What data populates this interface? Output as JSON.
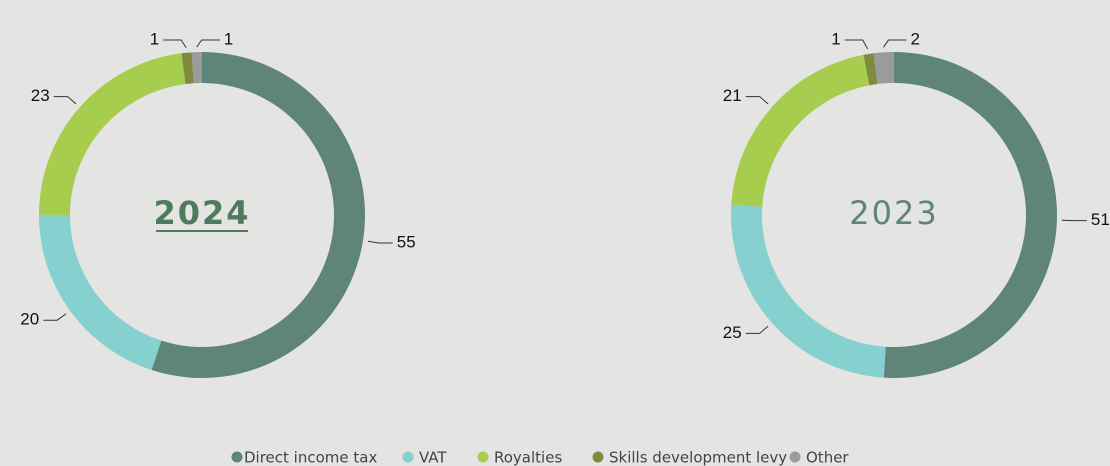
{
  "chart_data": [
    {
      "type": "pie",
      "title": "2024",
      "categories": [
        "Direct income tax",
        "VAT",
        "Royalties",
        "Skills development levy",
        "Other"
      ],
      "values": [
        55,
        20,
        23,
        1,
        1
      ],
      "colors": [
        "#5f8478",
        "#86d1cf",
        "#a6cd4e",
        "#7f8a3c",
        "#9a9b9d"
      ]
    },
    {
      "type": "pie",
      "title": "2023",
      "categories": [
        "Direct income tax",
        "VAT",
        "Royalties",
        "Skills development levy",
        "Other"
      ],
      "values": [
        51,
        25,
        21,
        1,
        2
      ],
      "colors": [
        "#5f8478",
        "#86d1cf",
        "#a6cd4e",
        "#7f8a3c",
        "#9a9b9d"
      ]
    }
  ]
}
